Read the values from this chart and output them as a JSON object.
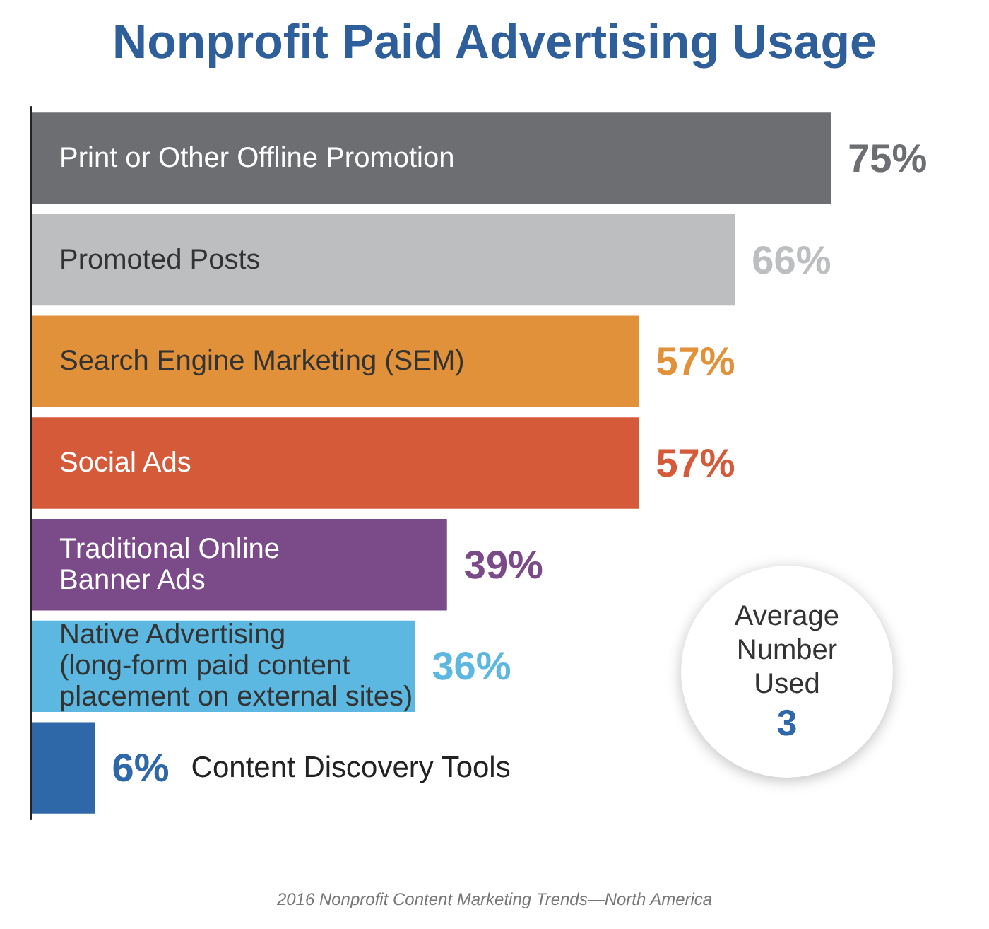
{
  "chart_data": {
    "type": "bar",
    "orientation": "horizontal",
    "title": "Nonprofit Paid Advertising Usage",
    "categories": [
      "Print or Other Offline Promotion",
      "Promoted Posts",
      "Search Engine Marketing (SEM)",
      "Social Ads",
      "Traditional Online\nBanner Ads",
      "Native Advertising\n(long-form paid content\nplacement on external sites)",
      "Content Discovery Tools"
    ],
    "values": [
      75,
      66,
      57,
      57,
      39,
      36,
      6
    ],
    "colors": [
      "#6d6e71",
      "#bcbec0",
      "#e0913a",
      "#d45a3a",
      "#7b4a88",
      "#5cb8e0",
      "#2f68a8"
    ],
    "value_labels": [
      "75%",
      "66%",
      "57%",
      "57%",
      "39%",
      "36%",
      "6%"
    ],
    "annotations": [
      "Average Number Used",
      "3",
      "2016 Nonprofit Content Marketing Trends—North America"
    ],
    "data_labels": true
  }
}
